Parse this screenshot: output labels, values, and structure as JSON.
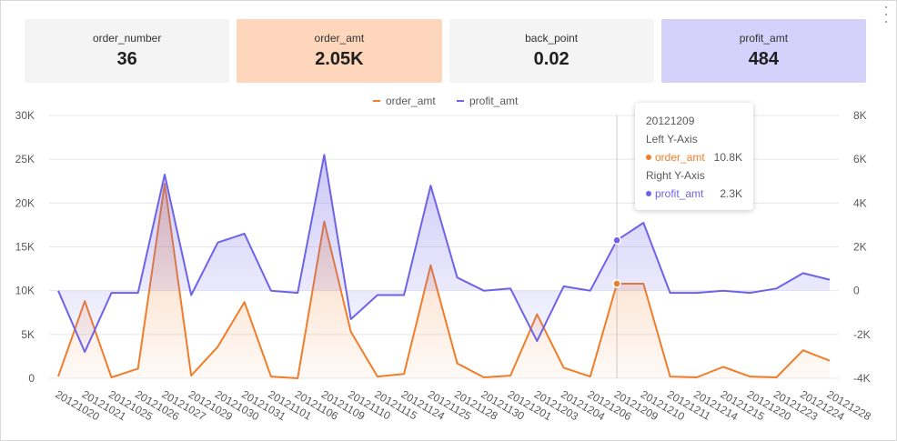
{
  "kpis": [
    {
      "label": "order_number",
      "value": "36",
      "bg": "#f4f4f4"
    },
    {
      "label": "order_amt",
      "value": "2.05K",
      "bg": "#fdd6bb"
    },
    {
      "label": "back_point",
      "value": "0.02",
      "bg": "#f4f4f4"
    },
    {
      "label": "profit_amt",
      "value": "484",
      "bg": "#d4d2fb"
    }
  ],
  "tooltip": {
    "title": "20121209",
    "left_axis_label": "Left Y-Axis",
    "right_axis_label": "Right Y-Axis",
    "left_series_name": "order_amt",
    "left_series_value": "10.8K",
    "right_series_name": "profit_amt",
    "right_series_value": "2.3K"
  },
  "colors": {
    "order_amt": "#f07d2a",
    "profit_amt": "#6e63e8",
    "grid": "#e8e8e8",
    "crosshair": "#cccccc"
  },
  "chart_data": {
    "type": "line",
    "title": "",
    "xlabel": "",
    "ylabel": "",
    "ylabel_right": "",
    "legend_position": "top-center",
    "grid": true,
    "categories": [
      "20121020",
      "20121021",
      "20121025",
      "20121026",
      "20121027",
      "20121029",
      "20121030",
      "20121031",
      "20121101",
      "20121106",
      "20121109",
      "20121110",
      "20121115",
      "20121124",
      "20121125",
      "20121128",
      "20121130",
      "20121201",
      "20121203",
      "20121204",
      "20121206",
      "20121209",
      "20121210",
      "20121211",
      "20121214",
      "20121215",
      "20121220",
      "20121223",
      "20121224",
      "20121228"
    ],
    "series": [
      {
        "name": "order_amt",
        "axis": "left",
        "area": true,
        "values": [
          200,
          8800,
          100,
          1100,
          22200,
          300,
          3600,
          8700,
          200,
          0,
          17900,
          5300,
          200,
          500,
          12900,
          1700,
          100,
          300,
          7300,
          1200,
          200,
          10800,
          10800,
          200,
          100,
          1300,
          200,
          100,
          3200,
          2000
        ]
      },
      {
        "name": "profit_amt",
        "axis": "right",
        "area": true,
        "values": [
          0,
          -2800,
          -100,
          -100,
          5300,
          -200,
          2200,
          2600,
          0,
          -100,
          6200,
          -1300,
          -200,
          -200,
          4800,
          600,
          0,
          100,
          -2300,
          200,
          0,
          2300,
          3100,
          -100,
          -100,
          0,
          -100,
          100,
          800,
          500
        ]
      }
    ],
    "ylim_left": [
      0,
      30000
    ],
    "yticks_left": [
      "0",
      "5K",
      "10K",
      "15K",
      "20K",
      "25K",
      "30K"
    ],
    "ylim_right": [
      -4000,
      8000
    ],
    "yticks_right": [
      "-4K",
      "-2K",
      "0",
      "2K",
      "4K",
      "6K",
      "8K"
    ],
    "highlight_category": "20121209"
  }
}
